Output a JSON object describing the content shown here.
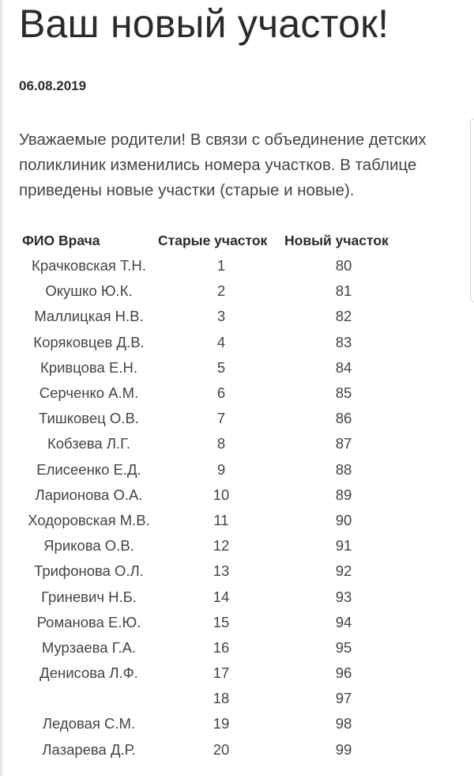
{
  "title": "Ваш новый участок!",
  "date": "06.08.2019",
  "intro": "Уважаемые родители! В связи с объединение детских поликлиник изменились номера участков. В таблице приведены новые участки (старые и новые).",
  "table": {
    "headers": [
      "ФИО Врача",
      "Старые участок",
      "Новый участок"
    ],
    "rows": [
      [
        "Крачковская Т.Н.",
        "1",
        "80"
      ],
      [
        "Окушко Ю.К.",
        "2",
        "81"
      ],
      [
        "Маллицкая Н.В.",
        "3",
        "82"
      ],
      [
        "Коряковцев Д.В.",
        "4",
        "83"
      ],
      [
        "Кривцова Е.Н.",
        "5",
        "84"
      ],
      [
        "Серченко А.М.",
        "6",
        "85"
      ],
      [
        "Тишковец О.В.",
        "7",
        "86"
      ],
      [
        "Кобзева Л.Г.",
        "8",
        "87"
      ],
      [
        "Елисеенко Е.Д.",
        "9",
        "88"
      ],
      [
        "Ларионова О.А.",
        "10",
        "89"
      ],
      [
        "Ходоровская М.В.",
        "11",
        "90"
      ],
      [
        "Ярикова О.В.",
        "12",
        "91"
      ],
      [
        "Трифонова О.Л.",
        "13",
        "92"
      ],
      [
        "Гриневич Н.Б.",
        "14",
        "93"
      ],
      [
        "Романова Е.Ю.",
        "15",
        "94"
      ],
      [
        "Мурзаева Г.А.",
        "16",
        "95"
      ],
      [
        "Денисова Л.Ф.",
        "17",
        "96"
      ],
      [
        "",
        "18",
        "97"
      ],
      [
        "Ледовая С.М.",
        "19",
        "98"
      ],
      [
        "Лазарева Д.Р.",
        "20",
        "99"
      ]
    ]
  }
}
